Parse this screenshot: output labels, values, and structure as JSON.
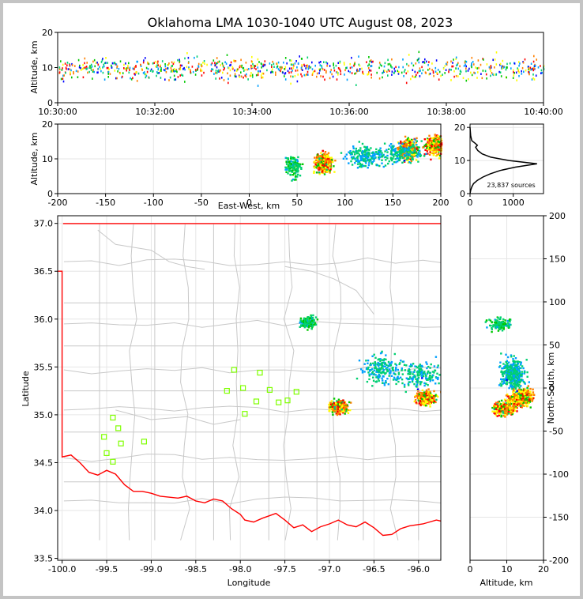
{
  "chart_data": {
    "type": "scatter",
    "title": "Oklahoma LMA 1030-1040 UTC August 08, 2023",
    "colors": {
      "density_scale": [
        "#0000ff",
        "#00a0ff",
        "#00d070",
        "#00c800",
        "#ffff00",
        "#ff8000",
        "#ff0000"
      ],
      "state_border": "#ff0000",
      "county_lines": "#c8c8c8",
      "station": "#7fff00",
      "frame_border": "#c4c4c4"
    },
    "panels": {
      "time_altitude": {
        "xlabel": "",
        "ylabel": "Altitude, km",
        "xlim": [
          "10:30:00",
          "10:40:00"
        ],
        "ylim": [
          0,
          20
        ],
        "xticks": [
          "10:30:00",
          "10:32:00",
          "10:34:00",
          "10:36:00",
          "10:38:00",
          "10:40:00"
        ],
        "yticks": [
          0,
          10,
          20
        ]
      },
      "ew_altitude": {
        "xlabel": "East-West, km",
        "ylabel": "Altitude, km",
        "xlim": [
          -200,
          200
        ],
        "ylim": [
          0,
          20
        ],
        "xticks": [
          -200,
          -150,
          -100,
          -50,
          0,
          50,
          100,
          150,
          200
        ],
        "yticks": [
          0,
          10,
          20
        ]
      },
      "altitude_histogram": {
        "annotation": "23,837 sources",
        "xlim": [
          0,
          1700
        ],
        "ylim": [
          0,
          21
        ],
        "xticks": [
          0,
          1000
        ],
        "yticks": [
          0,
          10,
          20
        ],
        "profile": [
          [
            0,
            0
          ],
          [
            15,
            1
          ],
          [
            40,
            2
          ],
          [
            80,
            3
          ],
          [
            170,
            4
          ],
          [
            300,
            5
          ],
          [
            470,
            6
          ],
          [
            700,
            7
          ],
          [
            1050,
            8
          ],
          [
            1550,
            9
          ],
          [
            900,
            10
          ],
          [
            480,
            11
          ],
          [
            280,
            12
          ],
          [
            180,
            13
          ],
          [
            130,
            14
          ],
          [
            170,
            14.6
          ],
          [
            110,
            15.3
          ],
          [
            40,
            16
          ],
          [
            15,
            17.5
          ],
          [
            5,
            19
          ],
          [
            0,
            20
          ]
        ]
      },
      "plan_view": {
        "xlabel": "Longitude",
        "ylabel": "Latitude",
        "xlim": [
          -100.05,
          -95.75
        ],
        "ylim": [
          33.48,
          37.08
        ],
        "xticks": [
          -100.0,
          -99.5,
          -99.0,
          -98.5,
          -98.0,
          -97.5,
          -97.0,
          -96.5,
          -96.0
        ],
        "yticks": [
          33.5,
          34.0,
          34.5,
          35.0,
          35.5,
          36.0,
          36.5,
          37.0
        ],
        "stations": [
          [
            -98.07,
            35.47
          ],
          [
            -97.78,
            35.44
          ],
          [
            -98.15,
            35.25
          ],
          [
            -97.97,
            35.28
          ],
          [
            -97.67,
            35.26
          ],
          [
            -97.37,
            35.24
          ],
          [
            -97.47,
            35.15
          ],
          [
            -97.57,
            35.13
          ],
          [
            -97.82,
            35.14
          ],
          [
            -97.95,
            35.01
          ],
          [
            -99.43,
            34.97
          ],
          [
            -99.37,
            34.86
          ],
          [
            -99.53,
            34.77
          ],
          [
            -99.34,
            34.7
          ],
          [
            -99.08,
            34.72
          ],
          [
            -99.5,
            34.6
          ],
          [
            -99.43,
            34.51
          ]
        ]
      },
      "ns_altitude": {
        "xlabel": "Altitude, km",
        "ylabel": "North-South, km",
        "xlim": [
          0,
          20
        ],
        "ylim": [
          -200,
          200
        ],
        "xticks": [
          0,
          10,
          20
        ],
        "yticks": [
          -200,
          -150,
          -100,
          -50,
          0,
          50,
          100,
          150,
          200
        ]
      }
    },
    "source_clusters": [
      {
        "ew": 45,
        "ns": 75,
        "alt": 8,
        "spread": 8,
        "n": 140,
        "peak": 4
      },
      {
        "ew": 77,
        "ns": -23,
        "alt": 9,
        "spread": 9,
        "n": 320,
        "peak": 7
      },
      {
        "ew": 165,
        "ns": -13,
        "alt": 13,
        "spread": 10,
        "n": 300,
        "peak": 7
      },
      {
        "ew": 195,
        "ns": -8,
        "alt": 14,
        "spread": 12,
        "n": 300,
        "peak": 7
      },
      {
        "ew": 120,
        "ns": 20,
        "alt": 11,
        "spread": 22,
        "n": 200,
        "peak": 3
      },
      {
        "ew": 160,
        "ns": 15,
        "alt": 12,
        "spread": 20,
        "n": 160,
        "peak": 3
      }
    ]
  }
}
